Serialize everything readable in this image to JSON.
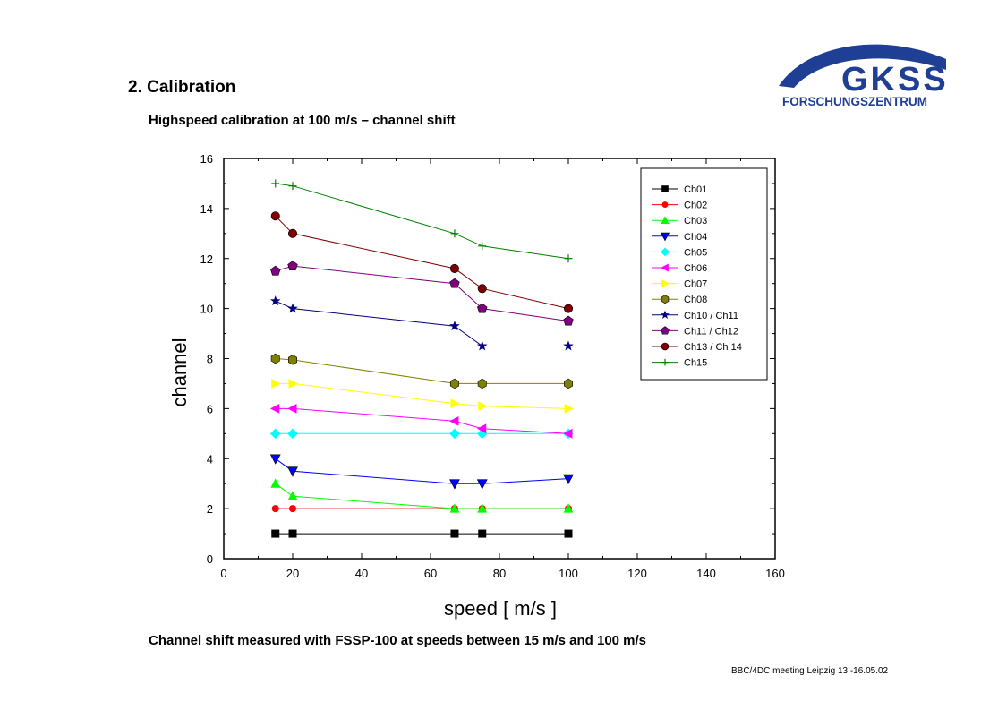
{
  "slide": {
    "heading": "2. Calibration",
    "subheading": "Highspeed calibration at 100 m/s – channel shift",
    "caption": "Channel shift measured with FSSP-100 at speeds between 15 m/s and 100 m/s",
    "footer": "BBC/4DC meeting Leipzig 13.-16.05.02"
  },
  "logo": {
    "main_text": "GKSS",
    "sub_text": "FORSCHUNGSZENTRUM",
    "color": "#1f3f95"
  },
  "chart_data": {
    "type": "line",
    "xlabel": "speed  [ m/s ]",
    "ylabel": "channel",
    "xlim": [
      0,
      160
    ],
    "ylim": [
      0,
      16
    ],
    "xticks": [
      0,
      20,
      40,
      60,
      80,
      100,
      120,
      140,
      160
    ],
    "yticks": [
      0,
      2,
      4,
      6,
      8,
      10,
      12,
      14,
      16
    ],
    "grid": false,
    "legend_position": "top-right",
    "series": [
      {
        "name": "Ch01",
        "color": "#000000",
        "marker": "square",
        "x": [
          15,
          20,
          67,
          75,
          100
        ],
        "y": [
          1,
          1,
          1,
          1,
          1
        ]
      },
      {
        "name": "Ch02",
        "color": "#ff0000",
        "marker": "circle",
        "x": [
          15,
          20,
          67,
          75,
          100
        ],
        "y": [
          2,
          2,
          2,
          2,
          2
        ]
      },
      {
        "name": "Ch03",
        "color": "#00ff00",
        "marker": "triangle-up",
        "x": [
          15,
          20,
          67,
          75,
          100
        ],
        "y": [
          3,
          2.5,
          2,
          2,
          2
        ]
      },
      {
        "name": "Ch04",
        "color": "#0000ff",
        "marker": "triangle-down",
        "x": [
          15,
          20,
          67,
          75,
          100
        ],
        "y": [
          4,
          3.5,
          3,
          3,
          3.2
        ]
      },
      {
        "name": "Ch05",
        "color": "#00ffff",
        "marker": "diamond",
        "x": [
          15,
          20,
          67,
          75,
          100
        ],
        "y": [
          5,
          5,
          5,
          5,
          5
        ]
      },
      {
        "name": "Ch06",
        "color": "#ff00ff",
        "marker": "triangle-left",
        "x": [
          15,
          20,
          67,
          75,
          100
        ],
        "y": [
          6,
          6,
          5.5,
          5.2,
          5
        ]
      },
      {
        "name": "Ch07",
        "color": "#ffff00",
        "marker": "triangle-right",
        "x": [
          15,
          20,
          67,
          75,
          100
        ],
        "y": [
          7,
          7,
          6.2,
          6.1,
          6
        ]
      },
      {
        "name": "Ch08",
        "color": "#808000",
        "marker": "hexagon",
        "x": [
          15,
          20,
          67,
          75,
          100
        ],
        "y": [
          8,
          7.95,
          7,
          7,
          7
        ]
      },
      {
        "name": "Ch10 / Ch11",
        "color": "#000080",
        "marker": "star",
        "x": [
          15,
          20,
          67,
          75,
          100
        ],
        "y": [
          10.3,
          10,
          9.3,
          8.5,
          8.5
        ]
      },
      {
        "name": "Ch11 / Ch12",
        "color": "#800080",
        "marker": "pentagon",
        "x": [
          15,
          20,
          67,
          75,
          100
        ],
        "y": [
          11.5,
          11.7,
          11,
          10,
          9.5
        ]
      },
      {
        "name": "Ch13 / Ch 14",
        "color": "#800000",
        "marker": "ball",
        "x": [
          15,
          20,
          67,
          75,
          100
        ],
        "y": [
          13.7,
          13,
          11.6,
          10.8,
          10
        ]
      },
      {
        "name": "Ch15",
        "color": "#008000",
        "marker": "plus",
        "x": [
          15,
          20,
          67,
          75,
          100
        ],
        "y": [
          15,
          14.9,
          13,
          12.5,
          12
        ]
      }
    ]
  }
}
